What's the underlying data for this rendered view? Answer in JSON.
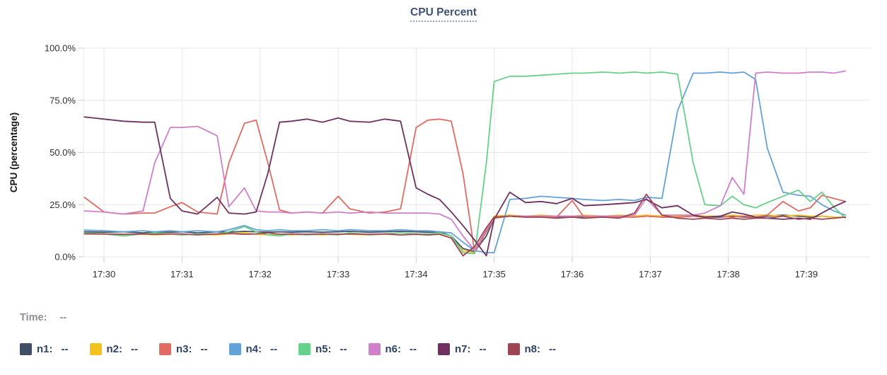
{
  "title": "CPU Percent",
  "time_row": {
    "label": "Time:",
    "value": "--"
  },
  "y_axis": {
    "label": "CPU (percentage)",
    "ticks": [
      "100.0%",
      "75.0%",
      "50.0%",
      "25.0%",
      "0.0%"
    ]
  },
  "x_axis": {
    "ticks": [
      "17:30",
      "17:31",
      "17:32",
      "17:33",
      "17:34",
      "17:35",
      "17:36",
      "17:37",
      "17:38",
      "17:39"
    ]
  },
  "legend": [
    {
      "name": "n1",
      "label": "n1:",
      "value": "--",
      "color": "#404e68"
    },
    {
      "name": "n2",
      "label": "n2:",
      "value": "--",
      "color": "#f3c21c"
    },
    {
      "name": "n3",
      "label": "n3:",
      "value": "--",
      "color": "#e16b62"
    },
    {
      "name": "n4",
      "label": "n4:",
      "value": "--",
      "color": "#62a2d9"
    },
    {
      "name": "n5",
      "label": "n5:",
      "value": "--",
      "color": "#67d08a"
    },
    {
      "name": "n6",
      "label": "n6:",
      "value": "--",
      "color": "#d07fca"
    },
    {
      "name": "n7",
      "label": "n7:",
      "value": "--",
      "color": "#6e3161"
    },
    {
      "name": "n8",
      "label": "n8:",
      "value": "--",
      "color": "#9d4554"
    }
  ],
  "chart_data": {
    "type": "line",
    "title": "CPU Percent",
    "xlabel": "",
    "ylabel": "CPU (percentage)",
    "ylim": [
      0,
      100
    ],
    "y_ticks": [
      100,
      75,
      50,
      25,
      0
    ],
    "y_tick_labels": [
      "100.0%",
      "75.0%",
      "50.0%",
      "25.0%",
      "0.0%"
    ],
    "x_unit": "minutes after 17:00 (decimal)",
    "x_tick_minutes": [
      30,
      31,
      32,
      33,
      34,
      35,
      36,
      37,
      38,
      39
    ],
    "x_tick_labels": [
      "17:30",
      "17:31",
      "17:32",
      "17:33",
      "17:34",
      "17:35",
      "17:36",
      "17:37",
      "17:38",
      "17:39"
    ],
    "grid": true,
    "legend_position": "bottom",
    "x": [
      29.75,
      30.0,
      30.25,
      30.5,
      30.65,
      30.85,
      31.0,
      31.2,
      31.45,
      31.6,
      31.8,
      31.95,
      32.1,
      32.25,
      32.4,
      32.6,
      32.8,
      33.0,
      33.15,
      33.4,
      33.6,
      33.8,
      34.0,
      34.15,
      34.3,
      34.45,
      34.6,
      34.75,
      34.9,
      35.0,
      35.2,
      35.4,
      35.6,
      35.8,
      36.0,
      36.15,
      36.4,
      36.6,
      36.8,
      36.95,
      37.15,
      37.35,
      37.55,
      37.7,
      37.9,
      38.05,
      38.2,
      38.35,
      38.5,
      38.7,
      38.9,
      39.05,
      39.2,
      39.35,
      39.5
    ],
    "series": [
      {
        "name": "n1",
        "color": "#404e68",
        "values": [
          12,
          11.8,
          12,
          11.5,
          12,
          11.8,
          12,
          11.5,
          12,
          11.8,
          12.2,
          12,
          11.8,
          12,
          11.8,
          12,
          11.8,
          12,
          12.2,
          11.8,
          12,
          12.2,
          12,
          11.8,
          12,
          10,
          4,
          2.5,
          10,
          18.5,
          19.5,
          19,
          19.5,
          19,
          19.5,
          19,
          19,
          19.5,
          19,
          19.5,
          19,
          19,
          19.5,
          19,
          19,
          19.5,
          19,
          19,
          19.5,
          20,
          19.5,
          19,
          19.5,
          19,
          19
        ]
      },
      {
        "name": "n2",
        "color": "#f3c21c",
        "values": [
          11,
          10.8,
          10.5,
          10.8,
          10.5,
          10.8,
          10.5,
          10.8,
          10.5,
          11,
          11.5,
          10.8,
          10.5,
          10.8,
          10.5,
          10.8,
          10.5,
          11,
          10.8,
          10.5,
          10.8,
          10.5,
          10.8,
          10.5,
          10.8,
          9,
          3,
          2,
          13,
          19.5,
          20,
          19.5,
          20,
          19.5,
          19.5,
          20,
          19.5,
          20,
          19.5,
          20,
          19.5,
          19.5,
          20,
          19.5,
          19.5,
          20,
          19.5,
          20,
          20,
          19.5,
          20,
          19.5,
          19.5,
          19,
          19
        ]
      },
      {
        "name": "n3",
        "color": "#e16b62",
        "values": [
          28.5,
          21.5,
          20.5,
          21,
          21,
          24,
          26,
          21.5,
          20.5,
          45,
          64,
          65.5,
          45,
          22.5,
          21,
          21.5,
          21,
          29,
          23,
          21,
          21.5,
          23,
          62,
          65.5,
          66,
          65,
          40,
          2,
          12,
          18.5,
          19.5,
          19,
          19,
          19,
          27,
          19,
          19.5,
          19,
          19,
          19.5,
          19,
          19,
          19.5,
          19,
          19.5,
          19,
          19.5,
          19,
          20,
          26.5,
          22,
          23.5,
          29.5,
          28,
          26.5
        ]
      },
      {
        "name": "n4",
        "color": "#62a2d9",
        "values": [
          12.8,
          12.5,
          12,
          12.5,
          12,
          12.5,
          12,
          12.5,
          12,
          13,
          15,
          13,
          12.5,
          13,
          12.5,
          12.5,
          13,
          12.5,
          13,
          12.5,
          12.5,
          13,
          12.5,
          12.5,
          12,
          11.5,
          7,
          3,
          2,
          2,
          27.5,
          28,
          29,
          28.5,
          28,
          27.5,
          27,
          27.5,
          27,
          28.5,
          28,
          70,
          88,
          88,
          88.5,
          88,
          88.5,
          85,
          52,
          31,
          29.5,
          29,
          25,
          22,
          20
        ]
      },
      {
        "name": "n5",
        "color": "#67d08a",
        "values": [
          11.5,
          11,
          10,
          11,
          11.5,
          11,
          10.5,
          11,
          11,
          12,
          14.5,
          12,
          10.5,
          10,
          11,
          10.5,
          11,
          10.5,
          11.5,
          10.5,
          11,
          11.5,
          11,
          11,
          11.5,
          10,
          2,
          1.5,
          45,
          84,
          86.5,
          86.5,
          87,
          87.5,
          88,
          88,
          88.5,
          88,
          88.5,
          88,
          88.5,
          87.5,
          45,
          25,
          24.5,
          29,
          25,
          23.5,
          26,
          29,
          32,
          26.5,
          31,
          24,
          18.5
        ]
      },
      {
        "name": "n6",
        "color": "#d07fca",
        "values": [
          22,
          21.5,
          20.5,
          22,
          45,
          62,
          62,
          62.5,
          58,
          24,
          33,
          22,
          21.5,
          21.5,
          21,
          21.5,
          21,
          21.5,
          21,
          21.5,
          21,
          21,
          21,
          21,
          20.5,
          18,
          10,
          3,
          13,
          19,
          19.5,
          19.5,
          19.5,
          19.5,
          19.5,
          19.5,
          19.5,
          19.5,
          20,
          28,
          20,
          20,
          20,
          21,
          24.5,
          38,
          30,
          88,
          88.5,
          88,
          88,
          88.5,
          88.5,
          88,
          89
        ]
      },
      {
        "name": "n7",
        "color": "#6e3161",
        "values": [
          67,
          66,
          65,
          64.5,
          64.5,
          28,
          22,
          20.5,
          28.5,
          21,
          20.5,
          21.5,
          40,
          64.5,
          65,
          66,
          64.5,
          66.5,
          65,
          64.5,
          66,
          65,
          33,
          30,
          27.5,
          21.5,
          15,
          8,
          0.5,
          18,
          31,
          26,
          26.5,
          25.5,
          28,
          24.5,
          25,
          25.5,
          26,
          27.5,
          23.5,
          24.5,
          20,
          19,
          19.5,
          21.5,
          20.5,
          19,
          18.5,
          18,
          18.5,
          18,
          21,
          24,
          26.5
        ]
      },
      {
        "name": "n8",
        "color": "#9d4554",
        "values": [
          11,
          11,
          10.8,
          11,
          10.8,
          11,
          11,
          10.5,
          11,
          11.2,
          10.8,
          11,
          11.5,
          10.8,
          11,
          10.8,
          11,
          10.8,
          11,
          10.8,
          11,
          10.5,
          10.8,
          10.5,
          10.8,
          9,
          0.5,
          5,
          14,
          19,
          19.5,
          19,
          19,
          18.5,
          19,
          18.5,
          19,
          18.5,
          21,
          30,
          20,
          18.5,
          18,
          18.5,
          18,
          18.5,
          18,
          18.5,
          18.5,
          19.5,
          18,
          18.5,
          18,
          18.5,
          19
        ]
      }
    ]
  }
}
